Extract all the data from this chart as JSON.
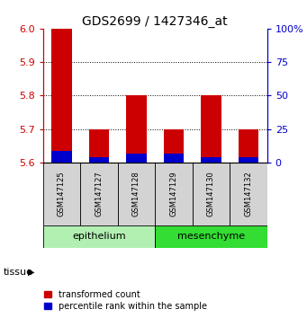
{
  "title": "GDS2699 / 1427346_at",
  "samples": [
    "GSM147125",
    "GSM147127",
    "GSM147128",
    "GSM147129",
    "GSM147130",
    "GSM147132"
  ],
  "red_values": [
    6.0,
    5.7,
    5.8,
    5.7,
    5.8,
    5.7
  ],
  "blue_values": [
    5.635,
    5.615,
    5.625,
    5.625,
    5.615,
    5.615
  ],
  "baseline": 5.6,
  "ylim": [
    5.6,
    6.0
  ],
  "yticks_left": [
    5.6,
    5.7,
    5.8,
    5.9,
    6.0
  ],
  "yticks_right": [
    0,
    25,
    50,
    75,
    100
  ],
  "ytick_labels_right": [
    "0",
    "25",
    "50",
    "75",
    "100%"
  ],
  "tissue_groups": [
    {
      "label": "epithelium",
      "start": 0,
      "end": 3,
      "color": "#b2f0b2"
    },
    {
      "label": "mesenchyme",
      "start": 3,
      "end": 6,
      "color": "#33dd33"
    }
  ],
  "bar_width": 0.55,
  "red_color": "#cc0000",
  "blue_color": "#0000cc",
  "left_tick_color": "#cc0000",
  "right_tick_color": "#0000cc",
  "background_color": "#ffffff",
  "plot_bg": "#ffffff",
  "sample_box_color": "#d3d3d3",
  "legend_red_label": "transformed count",
  "legend_blue_label": "percentile rank within the sample",
  "tissue_label": "tissue",
  "title_fontsize": 10,
  "tick_fontsize": 8,
  "sample_fontsize": 6,
  "tissue_fontsize": 8,
  "legend_fontsize": 7
}
